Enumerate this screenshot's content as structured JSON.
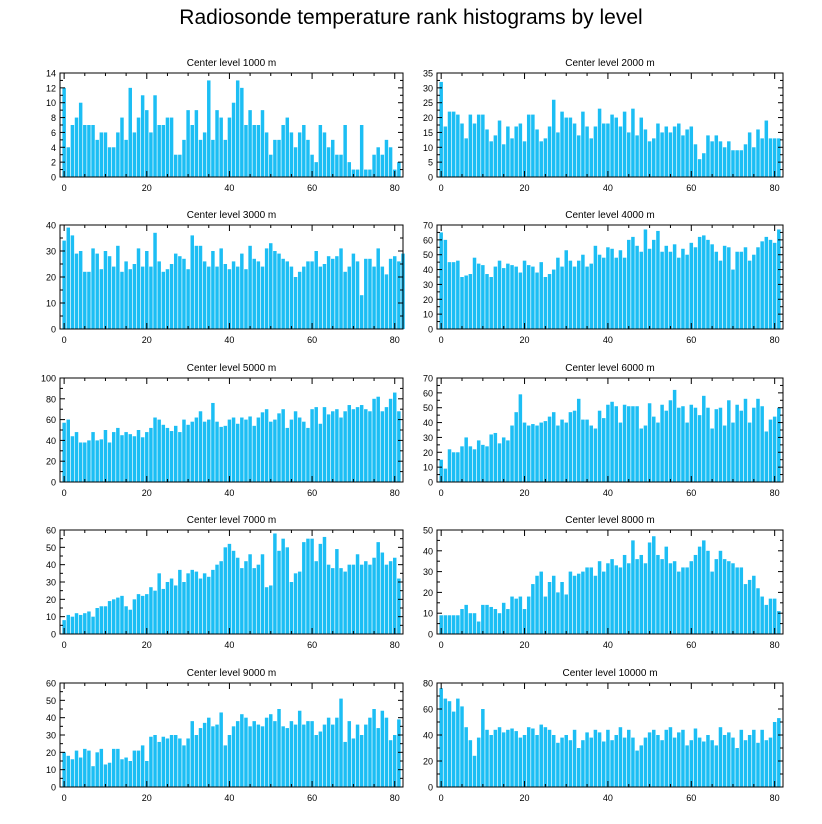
{
  "title": "Radiosonde temperature rank histograms by level",
  "colors": {
    "bar": "#1cbef4",
    "axis": "#000000"
  },
  "chart_data": [
    {
      "type": "bar",
      "title": "Center level 1000 m",
      "xlabel": "",
      "ylabel": "",
      "xlim": [
        -1,
        82
      ],
      "ylim": [
        0,
        14
      ],
      "yticks": [
        0,
        2,
        4,
        6,
        8,
        10,
        12,
        14
      ],
      "xticks": [
        0,
        20,
        40,
        60,
        80
      ],
      "values": [
        12,
        4,
        7,
        8,
        10,
        7,
        7,
        7,
        5,
        6,
        6,
        4,
        4,
        6,
        8,
        5,
        12,
        6,
        8,
        11,
        9,
        6,
        11,
        7,
        7,
        8,
        8,
        3,
        3,
        5,
        9,
        7,
        9,
        5,
        6,
        13,
        5,
        9,
        8,
        5,
        8,
        10,
        13,
        12,
        7,
        9,
        7,
        7,
        9,
        6,
        3,
        5,
        5,
        7,
        8,
        6,
        4,
        6,
        7,
        5,
        3,
        2,
        7,
        6,
        4,
        5,
        3,
        3,
        7,
        2,
        1,
        1,
        7,
        1,
        1,
        3,
        4,
        3,
        5,
        4,
        1,
        2
      ]
    },
    {
      "type": "bar",
      "title": "Center level 2000 m",
      "xlabel": "",
      "ylabel": "",
      "xlim": [
        -1,
        82
      ],
      "ylim": [
        0,
        35
      ],
      "yticks": [
        0,
        5,
        10,
        15,
        20,
        25,
        30,
        35
      ],
      "xticks": [
        0,
        20,
        40,
        60,
        80
      ],
      "values": [
        32,
        17,
        22,
        22,
        21,
        18,
        13,
        21,
        18,
        21,
        21,
        16,
        12,
        14,
        19,
        11,
        17,
        13,
        17,
        18,
        12,
        21,
        21,
        16,
        12,
        13,
        17,
        26,
        15,
        22,
        20,
        20,
        18,
        14,
        22,
        17,
        13,
        17,
        23,
        18,
        18,
        21,
        20,
        17,
        22,
        15,
        23,
        14,
        20,
        16,
        12,
        13,
        18,
        15,
        17,
        15,
        17,
        18,
        14,
        16,
        17,
        11,
        6,
        8,
        14,
        12,
        14,
        12,
        10,
        12,
        9,
        9,
        9,
        11,
        15,
        10,
        16,
        13,
        19,
        13,
        13,
        13
      ]
    },
    {
      "type": "bar",
      "title": "Center level 3000 m",
      "xlabel": "",
      "ylabel": "",
      "xlim": [
        -1,
        82
      ],
      "ylim": [
        0,
        40
      ],
      "yticks": [
        0,
        10,
        20,
        30,
        40
      ],
      "xticks": [
        0,
        20,
        40,
        60,
        80
      ],
      "values": [
        34,
        39,
        36,
        29,
        30,
        22,
        22,
        31,
        29,
        23,
        30,
        28,
        24,
        32,
        22,
        26,
        23,
        25,
        31,
        24,
        30,
        24,
        37,
        26,
        22,
        23,
        25,
        29,
        28,
        27,
        23,
        36,
        32,
        32,
        26,
        24,
        30,
        24,
        31,
        25,
        23,
        26,
        24,
        29,
        23,
        32,
        27,
        26,
        24,
        31,
        33,
        30,
        29,
        27,
        26,
        24,
        20,
        22,
        24,
        26,
        26,
        30,
        24,
        25,
        28,
        27,
        28,
        31,
        22,
        24,
        29,
        26,
        13,
        27,
        27,
        24,
        31,
        24,
        21,
        27,
        28,
        26,
        29
      ]
    },
    {
      "type": "bar",
      "title": "Center level 4000 m",
      "xlabel": "",
      "ylabel": "",
      "xlim": [
        -1,
        82
      ],
      "ylim": [
        0,
        70
      ],
      "yticks": [
        0,
        10,
        20,
        30,
        40,
        50,
        60,
        70
      ],
      "xticks": [
        0,
        20,
        40,
        60,
        80
      ],
      "values": [
        65,
        60,
        45,
        45,
        46,
        35,
        36,
        37,
        48,
        44,
        43,
        37,
        35,
        42,
        46,
        41,
        44,
        43,
        42,
        38,
        46,
        43,
        42,
        38,
        45,
        35,
        37,
        40,
        48,
        42,
        53,
        46,
        42,
        46,
        50,
        42,
        44,
        56,
        50,
        48,
        55,
        54,
        48,
        53,
        48,
        60,
        62,
        56,
        52,
        67,
        54,
        60,
        66,
        52,
        56,
        52,
        57,
        48,
        54,
        50,
        58,
        55,
        62,
        63,
        60,
        57,
        52,
        46,
        56,
        55,
        40,
        52,
        52,
        55,
        46,
        50,
        55,
        59,
        62,
        60,
        58,
        67
      ]
    },
    {
      "type": "bar",
      "title": "Center level 5000 m",
      "xlabel": "",
      "ylabel": "",
      "xlim": [
        -1,
        82
      ],
      "ylim": [
        0,
        100
      ],
      "yticks": [
        0,
        20,
        40,
        60,
        80,
        100
      ],
      "xticks": [
        0,
        20,
        40,
        60,
        80
      ],
      "values": [
        57,
        60,
        44,
        48,
        38,
        38,
        40,
        48,
        40,
        41,
        50,
        38,
        48,
        52,
        45,
        48,
        46,
        44,
        50,
        43,
        48,
        52,
        62,
        60,
        55,
        52,
        49,
        54,
        48,
        60,
        55,
        58,
        62,
        68,
        58,
        60,
        76,
        58,
        53,
        54,
        60,
        62,
        56,
        62,
        60,
        63,
        54,
        62,
        67,
        70,
        58,
        60,
        66,
        70,
        52,
        60,
        68,
        62,
        58,
        52,
        70,
        72,
        56,
        72,
        65,
        68,
        70,
        62,
        68,
        74,
        70,
        72,
        74,
        70,
        68,
        80,
        82,
        68,
        72,
        80,
        86,
        68
      ]
    },
    {
      "type": "bar",
      "title": "Center level 6000 m",
      "xlabel": "",
      "ylabel": "",
      "xlim": [
        -1,
        82
      ],
      "ylim": [
        0,
        70
      ],
      "yticks": [
        0,
        10,
        20,
        30,
        40,
        50,
        60,
        70
      ],
      "xticks": [
        0,
        20,
        40,
        60,
        80
      ],
      "values": [
        15,
        9,
        22,
        20,
        20,
        24,
        30,
        24,
        22,
        28,
        25,
        24,
        32,
        33,
        26,
        30,
        28,
        38,
        47,
        59,
        40,
        38,
        39,
        38,
        40,
        41,
        44,
        47,
        38,
        42,
        40,
        47,
        48,
        56,
        42,
        42,
        38,
        36,
        48,
        43,
        52,
        54,
        51,
        40,
        52,
        51,
        51,
        51,
        36,
        38,
        53,
        44,
        40,
        52,
        48,
        55,
        62,
        50,
        51,
        40,
        52,
        50,
        45,
        58,
        50,
        36,
        49,
        50,
        38,
        55,
        40,
        52,
        48,
        56,
        40,
        50,
        56,
        51,
        34,
        42,
        44,
        50
      ]
    },
    {
      "type": "bar",
      "title": "Center level 7000 m",
      "xlabel": "",
      "ylabel": "",
      "xlim": [
        -1,
        82
      ],
      "ylim": [
        0,
        60
      ],
      "yticks": [
        0,
        10,
        20,
        30,
        40,
        50,
        60
      ],
      "xticks": [
        0,
        20,
        40,
        60,
        80
      ],
      "values": [
        8,
        11,
        10,
        12,
        11,
        12,
        13,
        10,
        15,
        16,
        16,
        19,
        20,
        21,
        22,
        16,
        14,
        20,
        23,
        22,
        23,
        27,
        25,
        35,
        26,
        30,
        32,
        28,
        37,
        30,
        35,
        37,
        36,
        32,
        35,
        33,
        37,
        40,
        42,
        50,
        52,
        48,
        44,
        38,
        42,
        46,
        38,
        40,
        46,
        27,
        28,
        58,
        48,
        55,
        50,
        30,
        35,
        36,
        53,
        55,
        55,
        42,
        52,
        56,
        40,
        38,
        49,
        38,
        36,
        40,
        40,
        46,
        40,
        42,
        40,
        44,
        53,
        47,
        40,
        42,
        44,
        32
      ]
    },
    {
      "type": "bar",
      "title": "Center level 8000 m",
      "xlabel": "",
      "ylabel": "",
      "xlim": [
        -1,
        82
      ],
      "ylim": [
        0,
        50
      ],
      "yticks": [
        0,
        10,
        20,
        30,
        40,
        50
      ],
      "xticks": [
        0,
        20,
        40,
        60,
        80
      ],
      "values": [
        9,
        9,
        9,
        9,
        9,
        12,
        14,
        10,
        10,
        6,
        14,
        14,
        13,
        12,
        10,
        15,
        12,
        18,
        17,
        18,
        12,
        18,
        24,
        28,
        30,
        18,
        25,
        28,
        20,
        25,
        19,
        30,
        28,
        29,
        30,
        32,
        32,
        28,
        35,
        30,
        34,
        36,
        33,
        32,
        38,
        34,
        45,
        36,
        38,
        34,
        44,
        47,
        38,
        36,
        42,
        34,
        35,
        30,
        32,
        32,
        35,
        38,
        42,
        45,
        40,
        30,
        36,
        40,
        36,
        35,
        34,
        32,
        32,
        24,
        26,
        28,
        22,
        18,
        14,
        17,
        17,
        11
      ]
    },
    {
      "type": "bar",
      "title": "Center level 9000 m",
      "xlabel": "",
      "ylabel": "",
      "xlim": [
        -1,
        82
      ],
      "ylim": [
        0,
        60
      ],
      "yticks": [
        0,
        10,
        20,
        30,
        40,
        50,
        60
      ],
      "xticks": [
        0,
        20,
        40,
        60,
        80
      ],
      "values": [
        20,
        18,
        16,
        21,
        17,
        22,
        21,
        12,
        20,
        22,
        13,
        14,
        22,
        22,
        16,
        17,
        15,
        21,
        21,
        24,
        15,
        29,
        30,
        26,
        29,
        28,
        30,
        30,
        28,
        24,
        28,
        38,
        30,
        34,
        37,
        40,
        35,
        36,
        43,
        24,
        30,
        35,
        38,
        42,
        40,
        35,
        38,
        36,
        35,
        40,
        42,
        38,
        45,
        35,
        34,
        38,
        36,
        44,
        36,
        38,
        38,
        30,
        32,
        36,
        40,
        36,
        40,
        51,
        26,
        38,
        28,
        36,
        30,
        36,
        40,
        45,
        34,
        44,
        40,
        27,
        30,
        39
      ]
    },
    {
      "type": "bar",
      "title": "Center level 10000 m",
      "xlabel": "",
      "ylabel": "",
      "xlim": [
        -1,
        82
      ],
      "ylim": [
        0,
        80
      ],
      "yticks": [
        0,
        20,
        40,
        60,
        80
      ],
      "xticks": [
        0,
        20,
        40,
        60,
        80
      ],
      "values": [
        76,
        68,
        66,
        58,
        68,
        62,
        46,
        36,
        24,
        38,
        60,
        44,
        40,
        44,
        46,
        42,
        44,
        45,
        43,
        38,
        40,
        46,
        45,
        40,
        48,
        46,
        44,
        40,
        34,
        38,
        40,
        36,
        44,
        30,
        36,
        42,
        38,
        44,
        42,
        35,
        44,
        36,
        40,
        46,
        38,
        44,
        38,
        28,
        32,
        38,
        42,
        44,
        40,
        36,
        44,
        46,
        38,
        42,
        44,
        32,
        36,
        45,
        38,
        35,
        40,
        36,
        32,
        46,
        40,
        42,
        38,
        30,
        44,
        36,
        40,
        44,
        34,
        44,
        36,
        38,
        50,
        53
      ]
    }
  ]
}
